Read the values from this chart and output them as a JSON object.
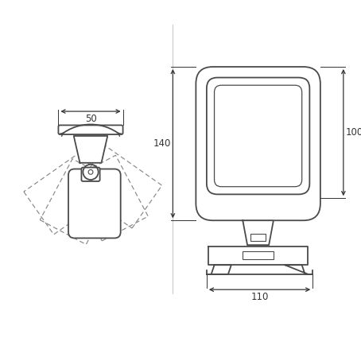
{
  "bg_color": "#ffffff",
  "line_color": "#4a4a4a",
  "dashed_color": "#888888",
  "dim_color": "#333333",
  "fig_width": 4.54,
  "fig_height": 4.54,
  "dpi": 100,
  "dim_140": "140",
  "dim_110": "110",
  "dim_100": "100",
  "dim_50": "50",
  "lw": 1.3,
  "dlw": 0.85
}
